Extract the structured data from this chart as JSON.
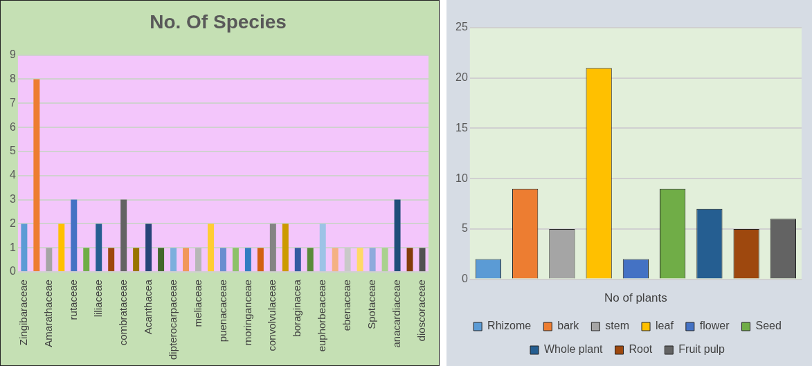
{
  "chart_data": [
    {
      "type": "bar",
      "title": "No. Of Species",
      "categories": [
        "Zingibaraceae",
        null,
        "Amarathaceae",
        null,
        "rutaceae",
        null,
        "liliaceae",
        null,
        "combrataceae",
        null,
        "Acanthacea",
        null,
        "dipterocarpaceae",
        null,
        "meliaceae",
        null,
        "puenacaceae",
        null,
        "moringanceae",
        null,
        "convolvulaceae",
        null,
        "boraginacea",
        null,
        "euphorbeaceae",
        null,
        "ebenaceae",
        null,
        "Spotaceae",
        null,
        "anacardiaceae",
        null,
        "dioscoraceae"
      ],
      "values": [
        2,
        8,
        1,
        2,
        3,
        1,
        2,
        1,
        3,
        1,
        2,
        1,
        1,
        1,
        1,
        2,
        1,
        1,
        1,
        1,
        2,
        2,
        1,
        1,
        2,
        1,
        1,
        1,
        1,
        1,
        3,
        1,
        1
      ],
      "colors": [
        "#5b9bd5",
        "#ed7d31",
        "#a5a5a5",
        "#ffc000",
        "#4472c4",
        "#70ad47",
        "#255e91",
        "#9e480e",
        "#636363",
        "#997300",
        "#264478",
        "#43682b",
        "#7cafdd",
        "#f1975a",
        "#b7b7b7",
        "#ffcd33",
        "#698ed0",
        "#8cc168",
        "#327dc2",
        "#d26012",
        "#848484",
        "#cc9a00",
        "#335aa1",
        "#5a8a39",
        "#9dc3e6",
        "#f4b183",
        "#c9c9c9",
        "#ffd966",
        "#8faadc",
        "#a9d18e",
        "#1f4e79",
        "#843c0c",
        "#525252"
      ],
      "ylim": [
        0,
        9
      ],
      "yticks": [
        0,
        1,
        2,
        3,
        4,
        5,
        6,
        7,
        8,
        9
      ],
      "grid": "y"
    },
    {
      "type": "bar",
      "xlabel": "No of plants",
      "categories": [
        null
      ],
      "series": [
        {
          "name": "Rhizome",
          "color": "#5b9bd5",
          "values": [
            2
          ]
        },
        {
          "name": "bark",
          "color": "#ed7d31",
          "values": [
            9
          ]
        },
        {
          "name": "stem",
          "color": "#a5a5a5",
          "values": [
            5
          ]
        },
        {
          "name": "leaf",
          "color": "#ffc000",
          "values": [
            21
          ]
        },
        {
          "name": "flower",
          "color": "#4472c4",
          "values": [
            2
          ]
        },
        {
          "name": "Seed",
          "color": "#70ad47",
          "values": [
            9
          ]
        },
        {
          "name": "Whole plant",
          "color": "#255e91",
          "values": [
            7
          ]
        },
        {
          "name": "Root",
          "color": "#9e480e",
          "values": [
            5
          ]
        },
        {
          "name": "Fruit pulp",
          "color": "#636363",
          "values": [
            6
          ]
        }
      ],
      "ylim": [
        0,
        25
      ],
      "yticks": [
        0,
        5,
        10,
        15,
        20,
        25
      ],
      "grid": "y",
      "legend": "bottom"
    }
  ]
}
